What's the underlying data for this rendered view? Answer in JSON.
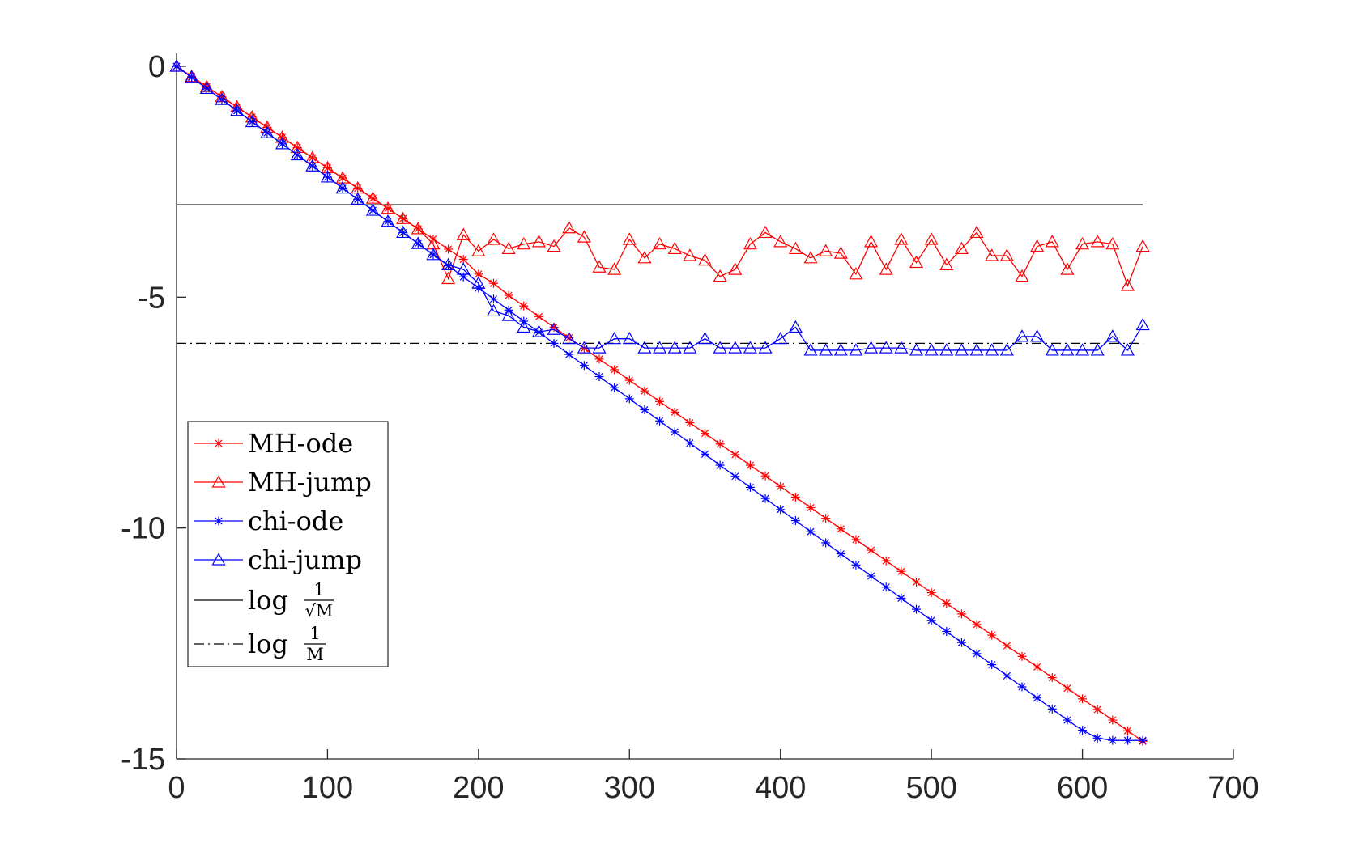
{
  "chart_data": {
    "type": "line",
    "title": "",
    "xlabel": "",
    "ylabel": "",
    "xlim": [
      0,
      700
    ],
    "ylim": [
      -15,
      0.5
    ],
    "xticks": [
      0,
      100,
      200,
      300,
      400,
      500,
      600,
      700
    ],
    "xtick_labels": [
      "0",
      "100",
      "200",
      "300",
      "400",
      "500",
      "600",
      "700"
    ],
    "yticks": [
      0,
      -5,
      -10,
      -15
    ],
    "ytick_labels": [
      "0",
      "-5",
      "-10",
      "-15"
    ],
    "grid": false,
    "legend_position": "bottom-left",
    "x": [
      0,
      10,
      20,
      30,
      40,
      50,
      60,
      70,
      80,
      90,
      100,
      110,
      120,
      130,
      140,
      150,
      160,
      170,
      180,
      190,
      200,
      210,
      220,
      230,
      240,
      250,
      260,
      270,
      280,
      290,
      300,
      310,
      320,
      330,
      340,
      350,
      360,
      370,
      380,
      390,
      400,
      410,
      420,
      430,
      440,
      450,
      460,
      470,
      480,
      490,
      500,
      510,
      520,
      530,
      540,
      550,
      560,
      570,
      580,
      590,
      600,
      610,
      620,
      630,
      640
    ],
    "series": [
      {
        "name": "MH-ode",
        "color": "#ff0000",
        "marker": "star",
        "line": "solid",
        "values": [
          0,
          -0.22,
          -0.44,
          -0.66,
          -0.88,
          -1.1,
          -1.32,
          -1.54,
          -1.76,
          -1.98,
          -2.2,
          -2.42,
          -2.64,
          -2.86,
          -3.08,
          -3.3,
          -3.52,
          -3.74,
          -3.96,
          -4.18,
          -4.5,
          -4.7,
          -4.96,
          -5.19,
          -5.42,
          -5.65,
          -5.88,
          -6.11,
          -6.34,
          -6.57,
          -6.8,
          -7.03,
          -7.26,
          -7.49,
          -7.72,
          -7.95,
          -8.18,
          -8.41,
          -8.64,
          -8.87,
          -9.1,
          -9.33,
          -9.56,
          -9.79,
          -10.02,
          -10.25,
          -10.48,
          -10.71,
          -10.94,
          -11.17,
          -11.4,
          -11.63,
          -11.86,
          -12.09,
          -12.32,
          -12.55,
          -12.78,
          -13.01,
          -13.24,
          -13.47,
          -13.7,
          -13.93,
          -14.16,
          -14.39,
          -14.62
        ]
      },
      {
        "name": "MH-jump",
        "color": "#ff0000",
        "marker": "triangle",
        "line": "solid",
        "values": [
          0,
          -0.22,
          -0.44,
          -0.66,
          -0.88,
          -1.1,
          -1.32,
          -1.54,
          -1.76,
          -1.98,
          -2.2,
          -2.42,
          -2.64,
          -2.86,
          -3.08,
          -3.3,
          -3.52,
          -3.85,
          -4.6,
          -3.65,
          -4.0,
          -3.75,
          -3.95,
          -3.85,
          -3.8,
          -3.9,
          -3.5,
          -3.7,
          -4.35,
          -4.4,
          -3.75,
          -4.15,
          -3.85,
          -3.95,
          -4.1,
          -4.2,
          -4.55,
          -4.4,
          -3.85,
          -3.6,
          -3.8,
          -3.95,
          -4.15,
          -4.0,
          -4.05,
          -4.5,
          -3.8,
          -4.4,
          -3.75,
          -4.25,
          -3.75,
          -4.3,
          -3.95,
          -3.6,
          -4.1,
          -4.1,
          -4.55,
          -3.9,
          -3.8,
          -4.4,
          -3.85,
          -3.8,
          -3.85,
          -4.75,
          -3.9
        ]
      },
      {
        "name": "chi-ode",
        "color": "#0000ff",
        "marker": "star",
        "line": "solid",
        "values": [
          0,
          -0.24,
          -0.48,
          -0.72,
          -0.96,
          -1.2,
          -1.44,
          -1.68,
          -1.92,
          -2.16,
          -2.4,
          -2.64,
          -2.88,
          -3.12,
          -3.36,
          -3.6,
          -3.84,
          -4.08,
          -4.32,
          -4.56,
          -4.8,
          -5.04,
          -5.28,
          -5.52,
          -5.76,
          -6.0,
          -6.24,
          -6.48,
          -6.72,
          -6.96,
          -7.2,
          -7.44,
          -7.68,
          -7.92,
          -8.16,
          -8.4,
          -8.64,
          -8.88,
          -9.12,
          -9.36,
          -9.6,
          -9.84,
          -10.08,
          -10.32,
          -10.56,
          -10.8,
          -11.04,
          -11.28,
          -11.52,
          -11.76,
          -12.0,
          -12.24,
          -12.48,
          -12.72,
          -12.96,
          -13.2,
          -13.44,
          -13.68,
          -13.92,
          -14.16,
          -14.38,
          -14.55,
          -14.6,
          -14.6,
          -14.6
        ]
      },
      {
        "name": "chi-jump",
        "color": "#0000ff",
        "marker": "triangle",
        "line": "solid",
        "values": [
          0,
          -0.24,
          -0.48,
          -0.72,
          -0.96,
          -1.2,
          -1.44,
          -1.68,
          -1.92,
          -2.16,
          -2.4,
          -2.64,
          -2.88,
          -3.12,
          -3.36,
          -3.6,
          -3.84,
          -4.08,
          -4.3,
          -4.4,
          -4.7,
          -5.3,
          -5.4,
          -5.65,
          -5.75,
          -5.7,
          -5.9,
          -6.1,
          -6.1,
          -5.9,
          -5.9,
          -6.1,
          -6.1,
          -6.1,
          -6.1,
          -5.9,
          -6.1,
          -6.1,
          -6.1,
          -6.1,
          -5.9,
          -5.65,
          -6.15,
          -6.15,
          -6.15,
          -6.15,
          -6.1,
          -6.1,
          -6.1,
          -6.15,
          -6.15,
          -6.15,
          -6.15,
          -6.15,
          -6.15,
          -6.15,
          -5.85,
          -5.85,
          -6.15,
          -6.15,
          -6.15,
          -6.15,
          -5.85,
          -6.15,
          -5.6
        ]
      },
      {
        "name": "log 1/√M",
        "color": "#000000",
        "marker": "none",
        "line": "solid",
        "constant": -3.0,
        "x_range": [
          0,
          640
        ]
      },
      {
        "name": "log 1/M",
        "color": "#000000",
        "marker": "none",
        "line": "dashdot",
        "constant": -6.0,
        "x_range": [
          0,
          640
        ]
      }
    ],
    "legend": [
      {
        "label": "MH-ode",
        "color": "#ff0000",
        "marker": "star",
        "line": "solid"
      },
      {
        "label": "MH-jump",
        "color": "#ff0000",
        "marker": "triangle",
        "line": "solid"
      },
      {
        "label": "chi-ode",
        "color": "#0000ff",
        "marker": "star",
        "line": "solid"
      },
      {
        "label": "chi-jump",
        "color": "#0000ff",
        "marker": "triangle",
        "line": "solid"
      },
      {
        "label": "log",
        "fraction_num": "1",
        "fraction_den": "√M",
        "color": "#000000",
        "marker": "none",
        "line": "solid"
      },
      {
        "label": "log",
        "fraction_num": "1",
        "fraction_den": "M",
        "color": "#000000",
        "marker": "none",
        "line": "dashdot"
      }
    ]
  }
}
